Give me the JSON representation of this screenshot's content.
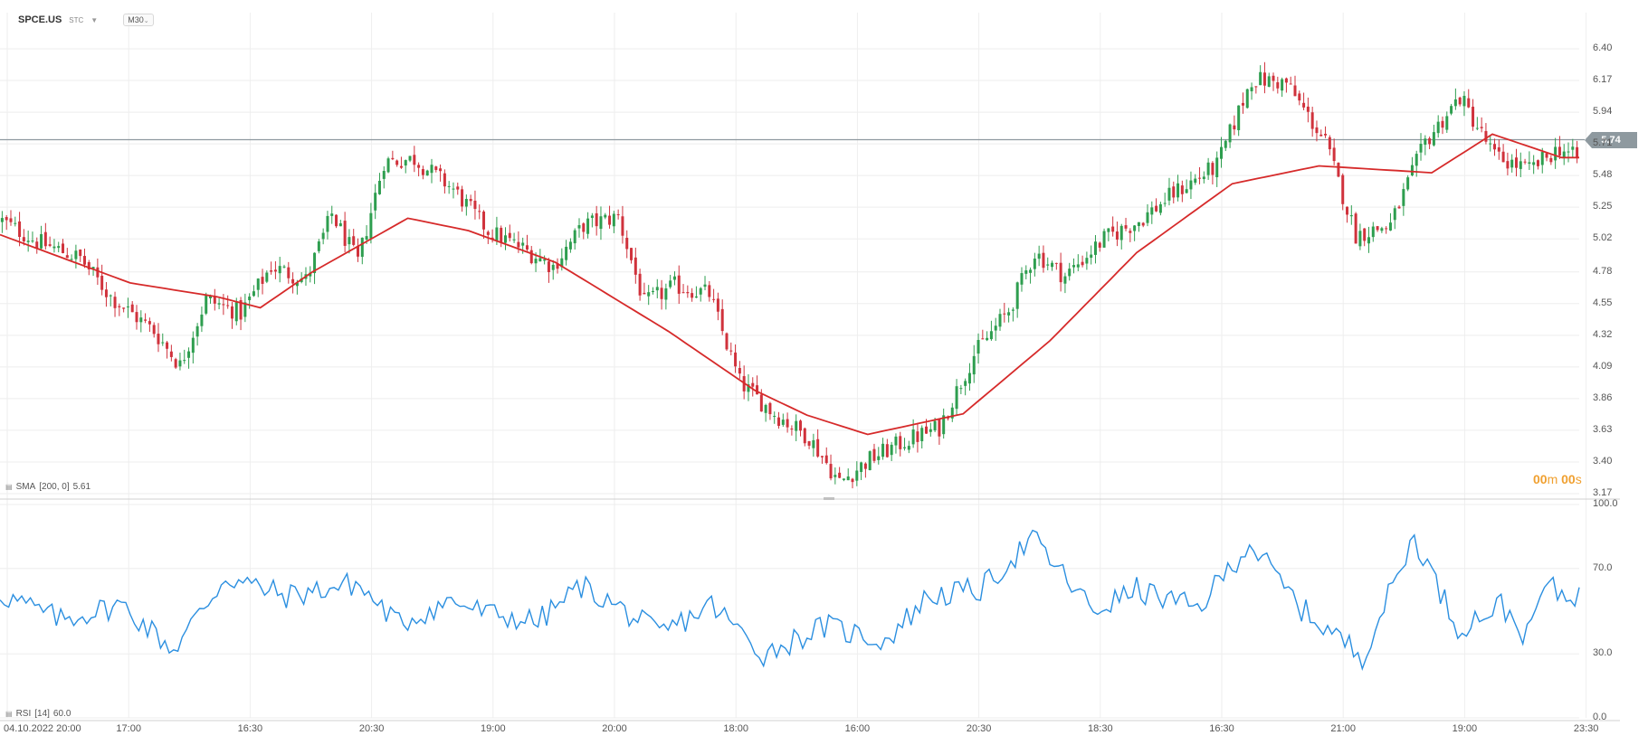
{
  "header": {
    "symbol": "SPCE.US",
    "market": "STC",
    "timeframe": "M30"
  },
  "indicators": {
    "sma_label": "SMA",
    "sma_params": "[200, 0]",
    "sma_value": "5.61",
    "rsi_label": "RSI",
    "rsi_params": "[14]",
    "rsi_value": "60.0"
  },
  "countdown": {
    "minutes": "00",
    "m": "m",
    "seconds": "00",
    "s": "s"
  },
  "current_price": "5.74",
  "colors": {
    "up": "#2e9e4f",
    "down": "#d0323c",
    "sma": "#d62a2a",
    "rsi": "#2b8fe0",
    "price_line": "#8e999f",
    "grid": "#eeeeee"
  },
  "icons": [
    "indicator-settings-icon",
    "caret-down-icon",
    "chevron-down-icon"
  ],
  "chart_data": [
    {
      "type": "candlestick",
      "title": "SPCE.US",
      "ylim": [
        3.17,
        6.5
      ],
      "y_ticks": [
        "6.40",
        "6.17",
        "5.94",
        "5.71",
        "5.48",
        "5.25",
        "5.02",
        "4.78",
        "4.55",
        "4.32",
        "4.09",
        "3.86",
        "3.63",
        "3.40",
        "3.17"
      ],
      "x_ticks": [
        "04.10.2022 20:00",
        "17:00",
        "16:30",
        "20:30",
        "19:00",
        "20:00",
        "18:00",
        "16:00",
        "20:30",
        "18:30",
        "16:30",
        "21:00",
        "19:00",
        "23:30"
      ],
      "close_path": [
        [
          0,
          5.15
        ],
        [
          8,
          5.0
        ],
        [
          18,
          4.88
        ],
        [
          25,
          4.6
        ],
        [
          35,
          4.35
        ],
        [
          41,
          4.1
        ],
        [
          47,
          4.58
        ],
        [
          55,
          4.48
        ],
        [
          62,
          4.82
        ],
        [
          70,
          4.72
        ],
        [
          76,
          5.2
        ],
        [
          82,
          4.85
        ],
        [
          88,
          5.58
        ],
        [
          95,
          5.6
        ],
        [
          104,
          5.38
        ],
        [
          112,
          5.08
        ],
        [
          120,
          4.95
        ],
        [
          127,
          4.82
        ],
        [
          134,
          5.12
        ],
        [
          142,
          5.18
        ],
        [
          148,
          4.55
        ],
        [
          155,
          4.68
        ],
        [
          163,
          4.62
        ],
        [
          170,
          3.98
        ],
        [
          178,
          3.75
        ],
        [
          186,
          3.58
        ],
        [
          193,
          3.25
        ],
        [
          200,
          3.42
        ],
        [
          208,
          3.55
        ],
        [
          216,
          3.65
        ],
        [
          224,
          4.18
        ],
        [
          232,
          4.5
        ],
        [
          238,
          4.92
        ],
        [
          245,
          4.75
        ],
        [
          254,
          5.02
        ],
        [
          262,
          5.15
        ],
        [
          270,
          5.35
        ],
        [
          280,
          5.55
        ],
        [
          288,
          6.18
        ],
        [
          296,
          6.15
        ],
        [
          305,
          5.72
        ],
        [
          312,
          5.05
        ],
        [
          320,
          5.12
        ],
        [
          328,
          5.72
        ],
        [
          336,
          6.05
        ],
        [
          344,
          5.62
        ],
        [
          352,
          5.52
        ],
        [
          359,
          5.68
        ],
        [
          363,
          5.6
        ]
      ],
      "sma_path": [
        [
          0,
          5.05
        ],
        [
          30,
          4.7
        ],
        [
          50,
          4.6
        ],
        [
          60,
          4.52
        ],
        [
          72,
          4.78
        ],
        [
          94,
          5.17
        ],
        [
          108,
          5.08
        ],
        [
          128,
          4.85
        ],
        [
          154,
          4.35
        ],
        [
          174,
          3.92
        ],
        [
          186,
          3.74
        ],
        [
          200,
          3.6
        ],
        [
          222,
          3.75
        ],
        [
          242,
          4.28
        ],
        [
          262,
          4.92
        ],
        [
          284,
          5.42
        ],
        [
          304,
          5.55
        ],
        [
          330,
          5.5
        ],
        [
          344,
          5.78
        ],
        [
          360,
          5.61
        ]
      ],
      "current_price": 5.74,
      "sma_label": "SMA [200, 0] 5.61"
    },
    {
      "type": "line",
      "title": "RSI",
      "ylim": [
        0,
        100
      ],
      "y_ticks": [
        "100.0",
        "70.0",
        "30.0",
        "0.0"
      ],
      "series": [
        {
          "name": "RSI",
          "anchors": [
            [
              0,
              58
            ],
            [
              14,
              46
            ],
            [
              28,
              53
            ],
            [
              40,
              32
            ],
            [
              52,
              66
            ],
            [
              66,
              57
            ],
            [
              82,
              63
            ],
            [
              92,
              44
            ],
            [
              104,
              55
            ],
            [
              112,
              49
            ],
            [
              124,
              45
            ],
            [
              134,
              62
            ],
            [
              144,
              50
            ],
            [
              152,
              39
            ],
            [
              164,
              53
            ],
            [
              176,
              30
            ],
            [
              190,
              43
            ],
            [
              204,
              36
            ],
            [
              214,
              57
            ],
            [
              226,
              60
            ],
            [
              238,
              84
            ],
            [
              252,
              50
            ],
            [
              262,
              60
            ],
            [
              276,
              51
            ],
            [
              288,
              82
            ],
            [
              300,
              51
            ],
            [
              314,
              29
            ],
            [
              326,
              85
            ],
            [
              336,
              42
            ],
            [
              346,
              53
            ],
            [
              352,
              38
            ],
            [
              356,
              62
            ],
            [
              360,
              58
            ]
          ],
          "value": 60.0
        }
      ]
    }
  ]
}
